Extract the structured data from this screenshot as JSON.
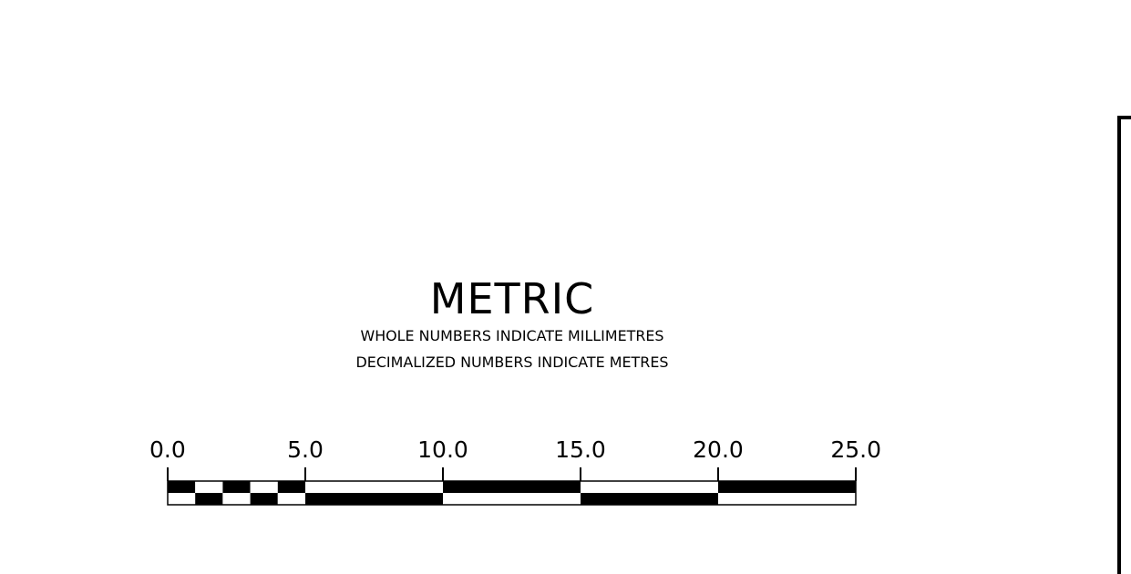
{
  "scale_bar": {
    "title": "METRIC",
    "note_line1": "WHOLE NUMBERS INDICATE MILLIMETRES",
    "note_line2": "DECIMALIZED NUMBERS INDICATE METRES",
    "ticks": [
      "0.0",
      "5.0",
      "10.0",
      "15.0",
      "20.0",
      "25.0"
    ],
    "range": [
      0,
      25
    ],
    "major_interval": 5,
    "minor_subdivisions": 5,
    "colors": {
      "ink": "#000000",
      "paper": "#ffffff"
    }
  }
}
